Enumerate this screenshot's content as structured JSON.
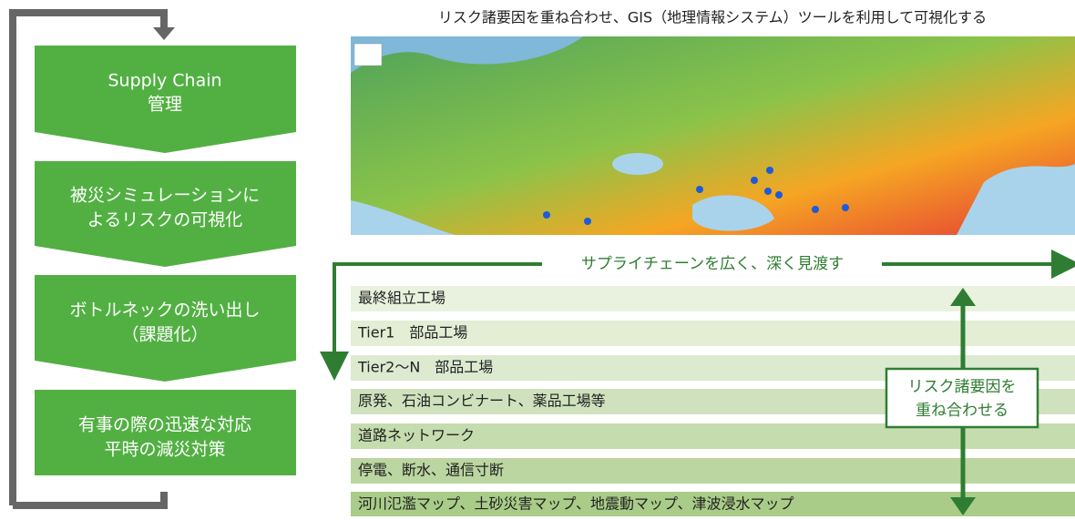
{
  "steps": [
    {
      "lines": [
        "Supply Chain",
        "管理"
      ]
    },
    {
      "lines": [
        "被災シミュレーションに",
        "よるリスクの可視化"
      ]
    },
    {
      "lines": [
        "ボトルネックの洗い出し",
        "（課題化）"
      ]
    },
    {
      "lines": [
        "有事の際の迅速な対応",
        "平時の減災対策"
      ]
    }
  ],
  "map_title": "リスク諸要因を重ね合わせ、GIS（地理情報システム）ツールを利用して可視化する",
  "overview_label": "サプライチェーンを広く、深く見渡す",
  "layers": [
    "最終組立工場",
    "Tier1　部品工場",
    "Tier2～N　部品工場",
    "原発、石油コンビナート、薬品工場等",
    "道路ネットワーク",
    "停電、断水、通信寸断",
    "河川氾濫マップ、土砂災害マップ、地震動マップ、津波浸水マップ"
  ],
  "overlay_box": {
    "lines": [
      "リスク諸要因を",
      "重ね合わせる"
    ]
  }
}
